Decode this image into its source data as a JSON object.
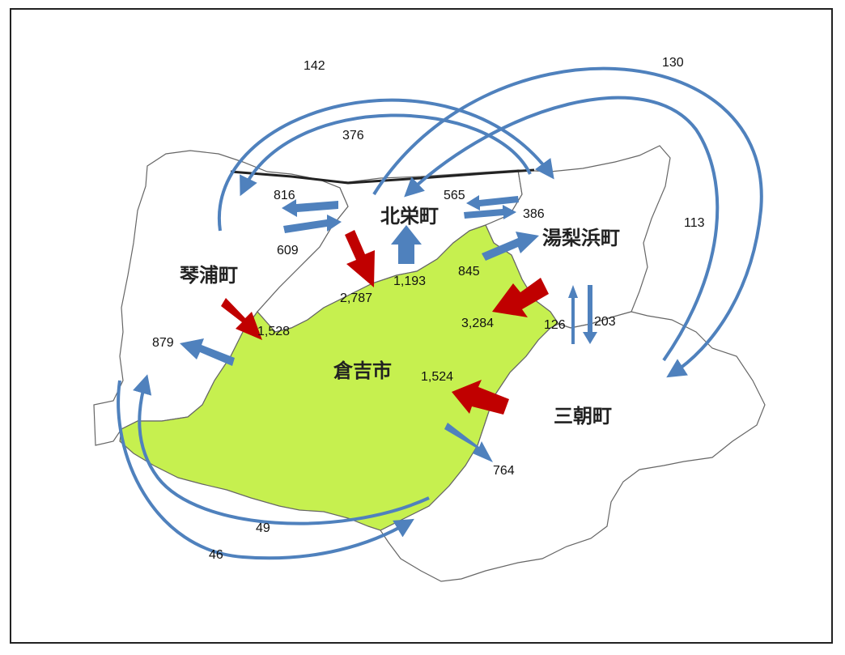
{
  "towns": {
    "kotoura": "琴浦町",
    "hokuei": "北栄町",
    "yurihama": "湯梨浜町",
    "kurayoshi": "倉吉市",
    "misasa": "三朝町"
  },
  "flows": {
    "f142": "142",
    "f130": "130",
    "f376": "376",
    "f113": "113",
    "f816": "816",
    "f609": "609",
    "f565": "565",
    "f386": "386",
    "f845": "845",
    "f1193": "1,193",
    "f2787": "2,787",
    "f3284": "3,284",
    "f1528": "1,528",
    "f879": "879",
    "f126": "126",
    "f203": "203",
    "f1524": "1,524",
    "f764": "764",
    "f49": "49",
    "f46": "46"
  },
  "colors": {
    "arrow_blue": "#4f81bd",
    "arrow_red": "#c00000",
    "kurayoshi_fill": "#c6f04f",
    "land_fill": "#ffffff",
    "border": "#666666"
  }
}
